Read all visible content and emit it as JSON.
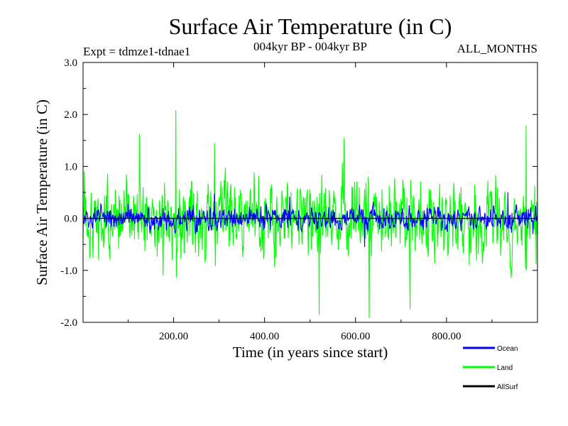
{
  "chart_data": {
    "type": "line",
    "title": "Surface Air Temperature (in C)",
    "subtitle": "004kyr BP - 004kyr BP",
    "left_note": "Expt = tdmze1-tdnae1",
    "right_note": "ALL_MONTHS",
    "xlabel": "Time (in years since start)",
    "ylabel": "Surface Air Temperature (in C)",
    "xlim": [
      1,
      1000
    ],
    "ylim": [
      -2.0,
      3.0
    ],
    "x_ticks": [
      200,
      400,
      600,
      800
    ],
    "x_tick_labels": [
      "200.00",
      "400.00",
      "600.00",
      "800.00"
    ],
    "y_ticks": [
      -2.0,
      -1.0,
      0.0,
      1.0,
      2.0,
      3.0
    ],
    "y_tick_labels": [
      "-2.0",
      "-1.0",
      "0.0",
      "1.0",
      "2.0",
      "3.0"
    ],
    "series": [
      {
        "name": "Land",
        "color": "#00ff00",
        "seed": 7,
        "amplitude": 0.55,
        "peaks": [
          [
            205,
            2.08
          ],
          [
            125,
            1.62
          ],
          [
            975,
            1.78
          ],
          [
            630,
            -1.92
          ],
          [
            520,
            -1.85
          ],
          [
            575,
            1.55
          ],
          [
            720,
            -1.75
          ],
          [
            290,
            1.45
          ]
        ]
      },
      {
        "name": "Ocean",
        "color": "#0000ff",
        "seed": 13,
        "amplitude": 0.16,
        "peaks": [
          [
            290,
            0.48
          ],
          [
            935,
            0.5
          ],
          [
            455,
            0.42
          ],
          [
            620,
            -0.55
          ]
        ]
      },
      {
        "name": "AllSurf",
        "color": "#000000",
        "seed": 0,
        "amplitude": 0.0,
        "peaks": []
      }
    ],
    "legend": [
      {
        "label": "Ocean",
        "color": "#0000ff"
      },
      {
        "label": "Land",
        "color": "#00ff00"
      },
      {
        "label": "AllSurf",
        "color": "#000000"
      }
    ]
  }
}
